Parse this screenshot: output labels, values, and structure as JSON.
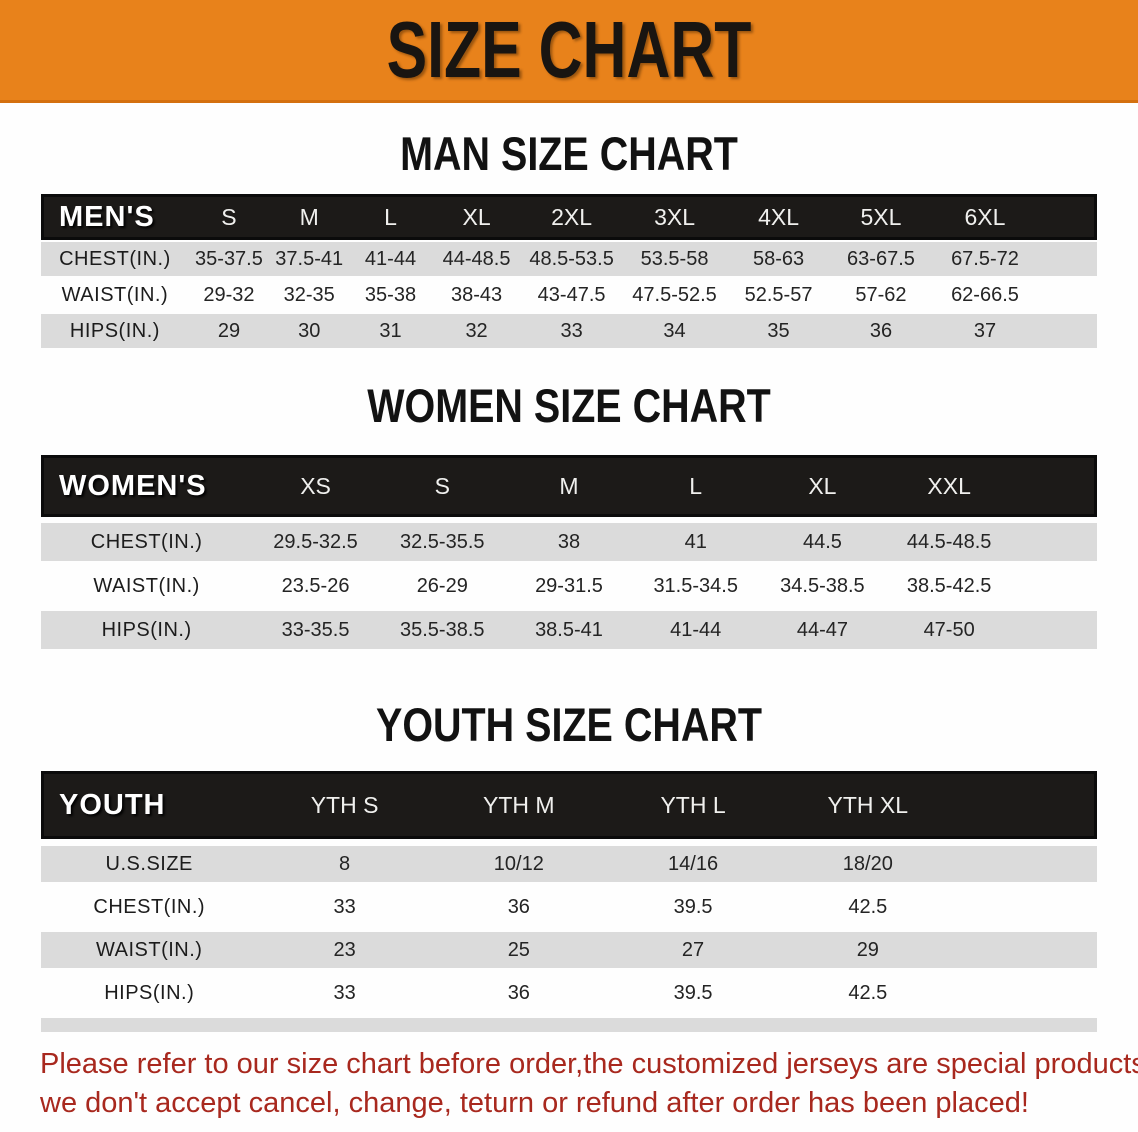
{
  "banner": {
    "title": "SIZE CHART"
  },
  "colors": {
    "banner_bg": "#E8821B",
    "table_header_bg": "#1C1A18",
    "row_gray": "#DBDBDB",
    "disclaimer_text": "#A8281E"
  },
  "sections": {
    "men": {
      "heading": "MAN SIZE CHART",
      "table": {
        "header": [
          "MEN'S",
          "S",
          "M",
          "L",
          "XL",
          "2XL",
          "3XL",
          "4XL",
          "5XL",
          "6XL"
        ],
        "rows": [
          {
            "label": "CHEST(IN.)",
            "values": [
              "35-37.5",
              "37.5-41",
              "41-44",
              "44-48.5",
              "48.5-53.5",
              "53.5-58",
              "58-63",
              "63-67.5",
              "67.5-72"
            ]
          },
          {
            "label": "WAIST(IN.)",
            "values": [
              "29-32",
              "32-35",
              "35-38",
              "38-43",
              "43-47.5",
              "47.5-52.5",
              "52.5-57",
              "57-62",
              "62-66.5"
            ]
          },
          {
            "label": "HIPS(IN.)",
            "values": [
              "29",
              "30",
              "31",
              "32",
              "33",
              "34",
              "35",
              "36",
              "37"
            ]
          }
        ]
      }
    },
    "women": {
      "heading": "WOMEN SIZE CHART",
      "table": {
        "header": [
          "WOMEN'S",
          "XS",
          "S",
          "M",
          "L",
          "XL",
          "XXL"
        ],
        "rows": [
          {
            "label": "CHEST(IN.)",
            "values": [
              "29.5-32.5",
              "32.5-35.5",
              "38",
              "41",
              "44.5",
              "44.5-48.5"
            ]
          },
          {
            "label": "WAIST(IN.)",
            "values": [
              "23.5-26",
              "26-29",
              "29-31.5",
              "31.5-34.5",
              "34.5-38.5",
              "38.5-42.5"
            ]
          },
          {
            "label": "HIPS(IN.)",
            "values": [
              "33-35.5",
              "35.5-38.5",
              "38.5-41",
              "41-44",
              "44-47",
              "47-50"
            ]
          }
        ]
      }
    },
    "youth": {
      "heading": "YOUTH SIZE CHART",
      "table": {
        "header": [
          "YOUTH",
          "YTH S",
          "YTH M",
          "YTH L",
          "YTH XL"
        ],
        "rows": [
          {
            "label": "U.S.SIZE",
            "values": [
              "8",
              "10/12",
              "14/16",
              "18/20"
            ]
          },
          {
            "label": "CHEST(IN.)",
            "values": [
              "33",
              "36",
              "39.5",
              "42.5"
            ]
          },
          {
            "label": "WAIST(IN.)",
            "values": [
              "23",
              "25",
              "27",
              "29"
            ]
          },
          {
            "label": "HIPS(IN.)",
            "values": [
              "33",
              "36",
              "39.5",
              "42.5"
            ]
          }
        ]
      }
    }
  },
  "disclaimer": {
    "line1": "Please refer to our size chart before order,the customized jerseys are special products,",
    "line2": "we don't accept cancel, change, teturn or refund after order has been placed!"
  }
}
